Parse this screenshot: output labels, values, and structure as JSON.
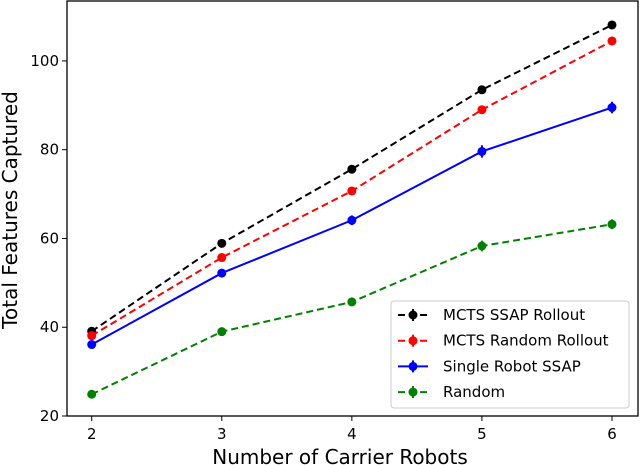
{
  "chart_data": {
    "type": "line",
    "title": "",
    "xlabel": "Number of Carrier Robots",
    "ylabel": "Total Features Captured",
    "x": [
      2,
      3,
      4,
      5,
      6
    ],
    "xlim": [
      1.81,
      6.2
    ],
    "ylim": [
      20,
      113.5
    ],
    "xticks": [
      2,
      3,
      4,
      5,
      6
    ],
    "yticks": [
      20,
      40,
      60,
      80,
      100
    ],
    "grid": false,
    "legend_position": "bottom-right",
    "series": [
      {
        "name": "MCTS SSAP Rollout",
        "color": "#000000",
        "dashed": true,
        "values": [
          39.1,
          58.9,
          75.6,
          93.5,
          108.1
        ],
        "yerr": [
          0.5,
          0.6,
          0.6,
          0.7,
          0.7
        ]
      },
      {
        "name": "MCTS Random Rollout",
        "color": "#ff0000",
        "dashed": true,
        "values": [
          38.1,
          55.7,
          70.7,
          89.0,
          104.5
        ],
        "yerr": [
          0.5,
          0.6,
          0.7,
          0.7,
          0.7
        ]
      },
      {
        "name": "Single Robot SSAP",
        "color": "#0000ff",
        "dashed": false,
        "values": [
          36.1,
          52.2,
          64.1,
          79.6,
          89.5
        ],
        "yerr": [
          0.5,
          0.9,
          1.1,
          1.4,
          1.3
        ]
      },
      {
        "name": "Random",
        "color": "#008000",
        "dashed": true,
        "values": [
          24.9,
          39.0,
          45.7,
          58.3,
          63.2
        ],
        "yerr": [
          0.3,
          0.5,
          0.6,
          1.2,
          1.1
        ]
      }
    ]
  }
}
